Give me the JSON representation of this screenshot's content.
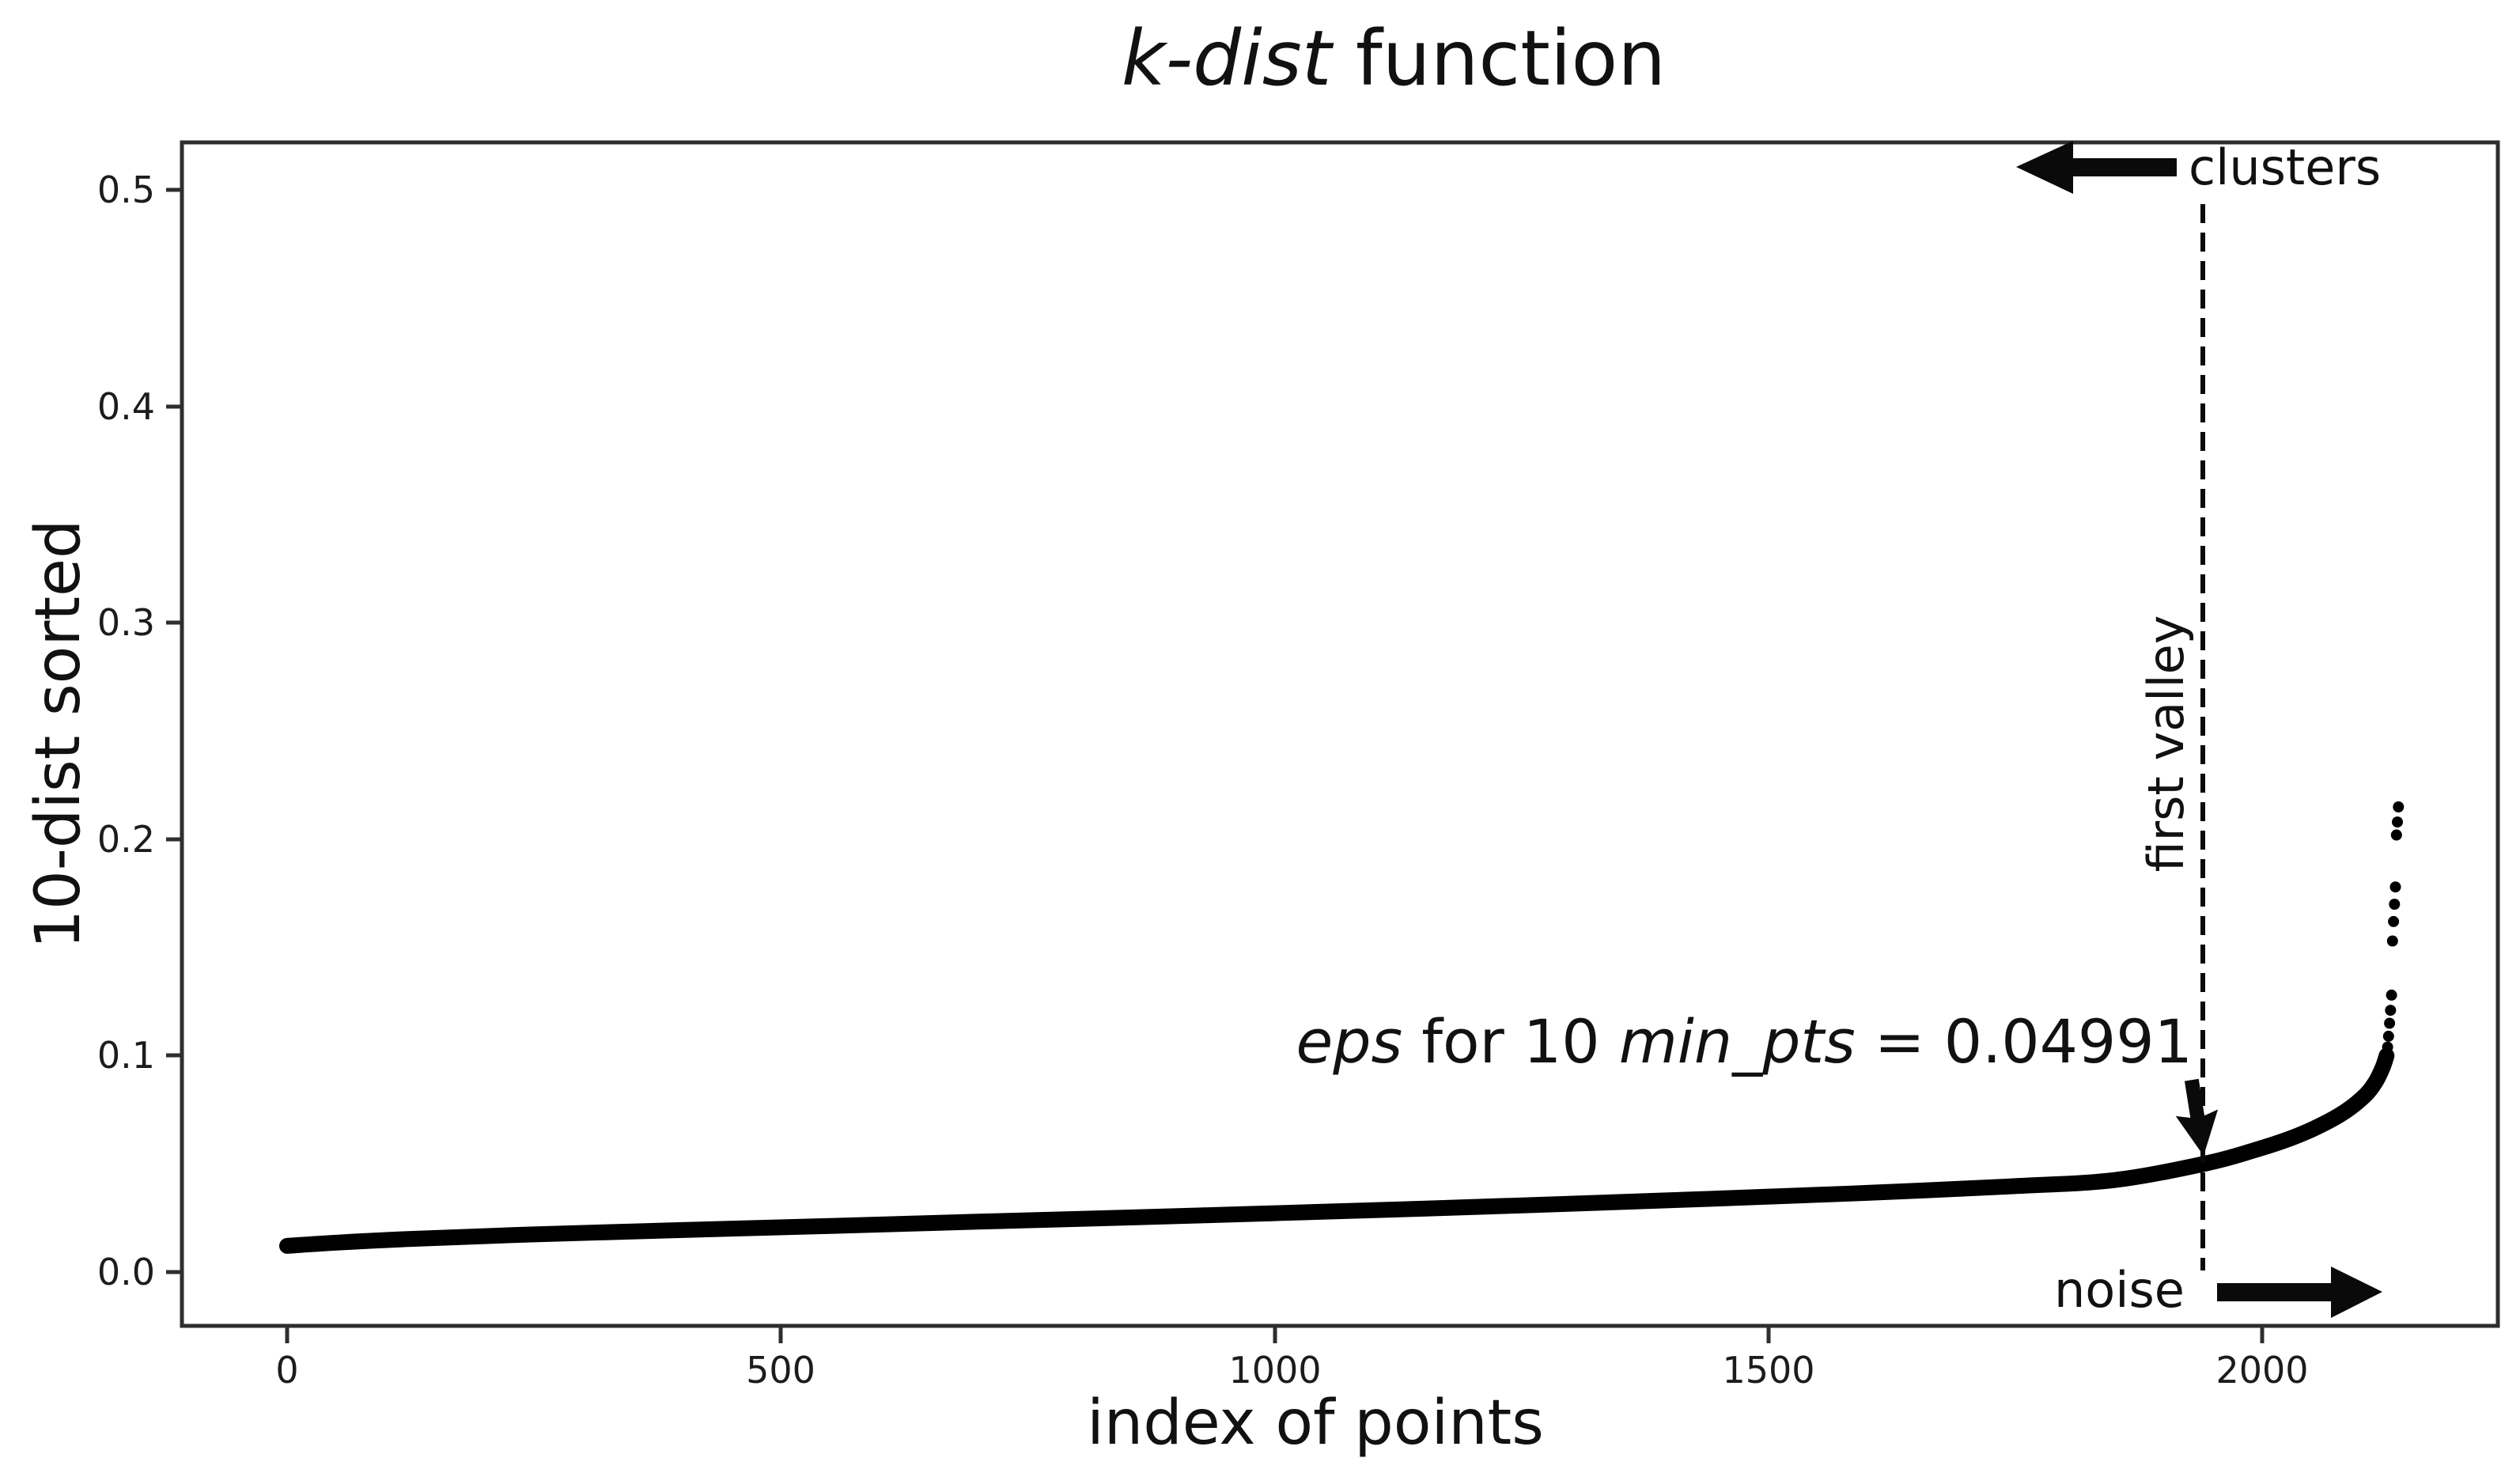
{
  "title": {
    "italic": "k-dist",
    "regular": " function"
  },
  "axes": {
    "x_label": "index of points",
    "y_label": "10-dist sorted",
    "x_tick_labels": [
      "0",
      "500",
      "1000",
      "1500",
      "2000"
    ],
    "y_tick_labels": [
      "0.0",
      "0.1",
      "0.2",
      "0.3",
      "0.4",
      "0.5"
    ]
  },
  "annotations": {
    "clusters": "clusters",
    "noise": "noise",
    "first_valley": "first valley",
    "eps_italic_1": "eps",
    "eps_regular_1": " for 10 ",
    "eps_italic_2": "min_pts",
    "eps_regular_2": " = 0.04991"
  },
  "chart_data": {
    "type": "line",
    "title": "k-dist function",
    "xlabel": "index of points",
    "ylabel": "10-dist sorted",
    "xlim": [
      -107,
      2239
    ],
    "ylim": [
      -0.025,
      0.522
    ],
    "x_ticks": [
      0,
      500,
      1000,
      1500,
      2000
    ],
    "y_ticks": [
      0.0,
      0.1,
      0.2,
      0.3,
      0.4,
      0.5
    ],
    "grid": false,
    "k": 10,
    "min_pts": 10,
    "eps": 0.04991,
    "first_valley_index": 1940,
    "line_color": "#000000",
    "curve_points": [
      [
        0,
        0.0121
      ],
      [
        50,
        0.0136
      ],
      [
        120,
        0.0152
      ],
      [
        250,
        0.0174
      ],
      [
        400,
        0.0194
      ],
      [
        550,
        0.0213
      ],
      [
        700,
        0.0233
      ],
      [
        850,
        0.0252
      ],
      [
        1000,
        0.0272
      ],
      [
        1150,
        0.0293
      ],
      [
        1300,
        0.0316
      ],
      [
        1450,
        0.034
      ],
      [
        1600,
        0.0366
      ],
      [
        1750,
        0.0397
      ],
      [
        1850,
        0.0425
      ],
      [
        1940,
        0.0499
      ],
      [
        1990,
        0.056
      ],
      [
        2030,
        0.062
      ],
      [
        2060,
        0.068
      ],
      [
        2085,
        0.0745
      ],
      [
        2105,
        0.082
      ],
      [
        2115,
        0.088
      ],
      [
        2122,
        0.0945
      ],
      [
        2126,
        0.1
      ]
    ],
    "outlier_points": [
      [
        2127,
        0.104
      ],
      [
        2128,
        0.109
      ],
      [
        2129,
        0.115
      ],
      [
        2130,
        0.121
      ],
      [
        2131,
        0.128
      ],
      [
        2132,
        0.153
      ],
      [
        2133,
        0.162
      ],
      [
        2134,
        0.17
      ],
      [
        2135,
        0.178
      ],
      [
        2136,
        0.202
      ],
      [
        2137,
        0.208
      ],
      [
        2138,
        0.215
      ]
    ]
  }
}
